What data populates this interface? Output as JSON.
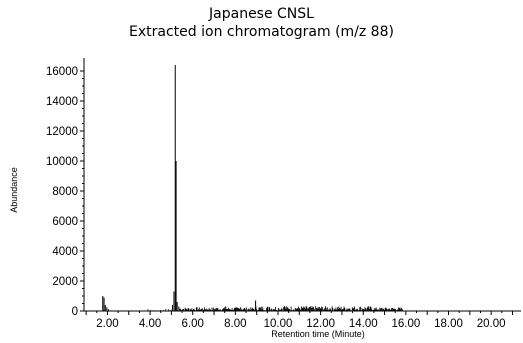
{
  "chart_data": {
    "type": "line",
    "title": "Japanese CNSL",
    "subtitle": "Extracted ion chromatogram (m/z 88)",
    "xlabel": "Retention time (Minute)",
    "ylabel": "Abundance",
    "xlim": [
      0.9,
      21.4
    ],
    "ylim": [
      0,
      16600
    ],
    "x_ticks": [
      2.0,
      4.0,
      6.0,
      8.0,
      10.0,
      12.0,
      14.0,
      16.0,
      18.0,
      20.0
    ],
    "x_tick_labels": [
      "2.00",
      "4.00",
      "6.00",
      "8.00",
      "10.00",
      "12.00",
      "14.00",
      "16.00",
      "18.00",
      "20.00"
    ],
    "y_ticks": [
      0,
      2000,
      4000,
      6000,
      8000,
      10000,
      12000,
      14000,
      16000
    ],
    "y_tick_labels": [
      "0",
      "2000",
      "4000",
      "6000",
      "8000",
      "10000",
      "12000",
      "14000",
      "16000"
    ],
    "grid": false,
    "series": [
      {
        "color": "#000000",
        "peaks": [
          {
            "x": 1.78,
            "y": 1000
          },
          {
            "x": 1.84,
            "y": 900
          },
          {
            "x": 1.9,
            "y": 400
          },
          {
            "x": 1.97,
            "y": 250
          },
          {
            "x": 2.05,
            "y": 120
          },
          {
            "x": 5.05,
            "y": 400
          },
          {
            "x": 5.12,
            "y": 1300
          },
          {
            "x": 5.18,
            "y": 16400
          },
          {
            "x": 5.22,
            "y": 10000
          },
          {
            "x": 5.27,
            "y": 600
          },
          {
            "x": 5.35,
            "y": 300
          },
          {
            "x": 6.2,
            "y": 250
          },
          {
            "x": 7.1,
            "y": 200
          },
          {
            "x": 7.55,
            "y": 300
          },
          {
            "x": 8.25,
            "y": 250
          },
          {
            "x": 8.95,
            "y": 700
          },
          {
            "x": 9.6,
            "y": 260
          },
          {
            "x": 10.3,
            "y": 330
          }
        ]
      }
    ]
  }
}
